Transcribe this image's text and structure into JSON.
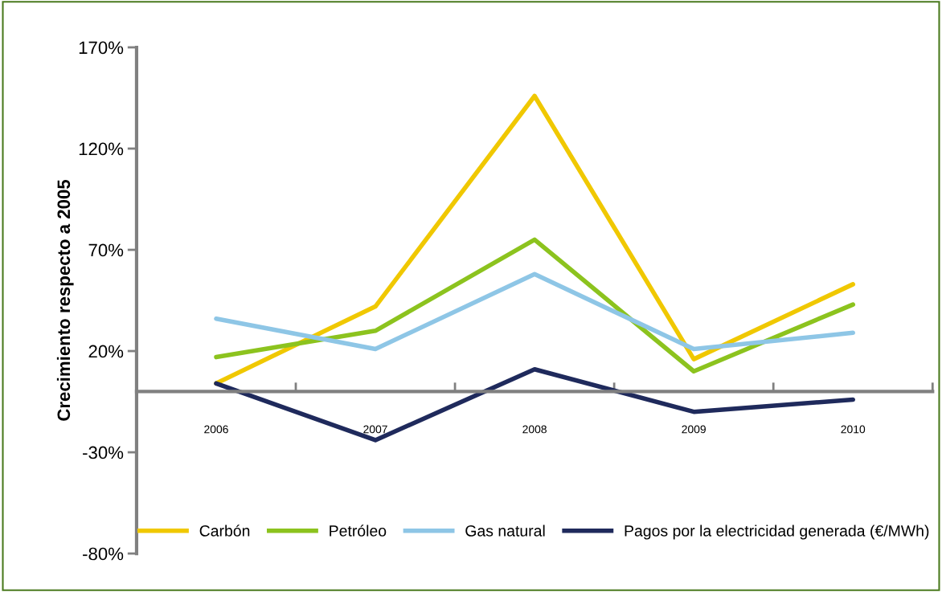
{
  "chart_data": {
    "type": "line",
    "ylabel": "Crecimiento respecto a 2005",
    "categories": [
      "2006",
      "2007",
      "2008",
      "2009",
      "2010"
    ],
    "series": [
      {
        "name": "Carbón",
        "color": "#f0c800",
        "values": [
          4,
          42,
          146,
          16,
          53
        ]
      },
      {
        "name": "Petróleo",
        "color": "#8cc31e",
        "values": [
          17,
          30,
          75,
          10,
          43
        ]
      },
      {
        "name": "Gas natural",
        "color": "#8ec6e6",
        "values": [
          36,
          21,
          58,
          21,
          29
        ]
      },
      {
        "name": "Pagos por la electricidad generada (€/MWh)",
        "color": "#1f2a5c",
        "values": [
          4,
          -24,
          11,
          -10,
          -4
        ]
      }
    ],
    "ylim": [
      -80,
      170
    ],
    "yticks": [
      {
        "value": -80,
        "label": "-80%"
      },
      {
        "value": -30,
        "label": "-30%"
      },
      {
        "value": 20,
        "label": "20%"
      },
      {
        "value": 70,
        "label": "70%"
      },
      {
        "value": 120,
        "label": "120%"
      },
      {
        "value": 170,
        "label": "170%"
      }
    ],
    "grid": false,
    "legend": "bottom",
    "marker": "none",
    "line_style": "solid"
  }
}
